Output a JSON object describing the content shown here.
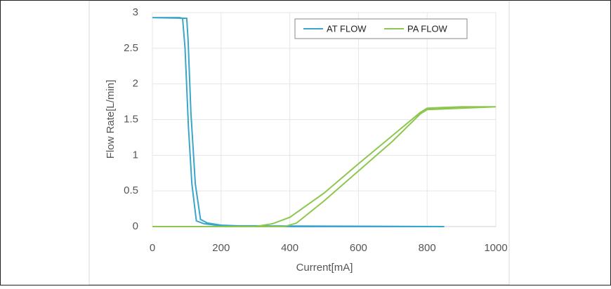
{
  "chart_data": {
    "type": "line",
    "xlabel": "Current[mA]",
    "ylabel": "Flow Rate[L/min]",
    "xlim": [
      0,
      1000
    ],
    "xticks": [
      0,
      200,
      400,
      600,
      800,
      1000
    ],
    "ylim": [
      0,
      3
    ],
    "yticks": [
      0,
      0.5,
      1,
      1.5,
      2,
      2.5,
      3
    ],
    "grid": true,
    "legend": "top-right",
    "series": [
      {
        "name": "AT FLOW",
        "color": "#3aa6c9",
        "x": [
          0,
          80,
          88,
          95,
          105,
          115,
          128,
          150,
          200,
          300,
          850,
          850,
          300,
          200,
          160,
          140,
          125,
          112,
          104,
          100,
          0
        ],
        "values": [
          2.93,
          2.93,
          2.92,
          2.5,
          1.4,
          0.6,
          0.08,
          0.04,
          0.01,
          0.01,
          0,
          0,
          0,
          0.02,
          0.05,
          0.1,
          0.6,
          1.6,
          2.6,
          2.92,
          2.93
        ]
      },
      {
        "name": "PA FLOW",
        "color": "#8dc74f",
        "x": [
          0,
          300,
          350,
          400,
          500,
          600,
          700,
          780,
          800,
          900,
          1000,
          800,
          780,
          700,
          600,
          500,
          420,
          385,
          300
        ],
        "values": [
          0,
          0,
          0.04,
          0.13,
          0.47,
          0.88,
          1.28,
          1.6,
          1.66,
          1.68,
          1.68,
          1.64,
          1.58,
          1.2,
          0.78,
          0.36,
          0.05,
          0,
          0
        ]
      }
    ]
  }
}
